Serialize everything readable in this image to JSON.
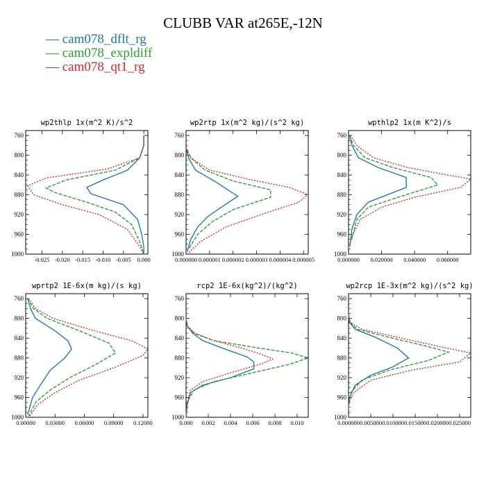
{
  "title": "CLUBB VAR at265E,-12N",
  "legend": [
    {
      "label": "— cam078_dflt_rg",
      "color": "#1f77b4"
    },
    {
      "label": "— cam078_expldiff",
      "color": "#2ca02c"
    },
    {
      "label": "— cam078_qt1_rg",
      "color": "#d62728"
    }
  ],
  "chart_data": [
    {
      "type": "line",
      "title": "wp2thlp  1x(m^2 K)/s^2",
      "xlim": [
        -0.029,
        0.001
      ],
      "ylim": [
        1000,
        750
      ],
      "yticks": [
        760,
        800,
        840,
        880,
        920,
        960,
        1000
      ],
      "xticks": [
        -0.025,
        -0.02,
        -0.015,
        -0.01,
        -0.005,
        0.0
      ],
      "xticklabels": [
        "-0.025",
        "-0.020",
        "-0.015",
        "-0.010",
        "-0.005",
        "0.000"
      ],
      "series": [
        {
          "style": "solid",
          "color": "#1f77b4",
          "x": [
            0,
            0,
            -0.001,
            -0.004,
            -0.01,
            -0.014,
            -0.013,
            -0.005,
            -0.0015,
            -0.0005,
            0,
            0
          ],
          "y": [
            760,
            780,
            805,
            830,
            850,
            865,
            878,
            900,
            930,
            960,
            985,
            1000
          ]
        },
        {
          "style": "dashed",
          "color": "#2ca02c",
          "x": [
            0,
            0,
            -0.001,
            -0.007,
            -0.019,
            -0.024,
            -0.022,
            -0.014,
            -0.007,
            -0.003,
            -0.001,
            0
          ],
          "y": [
            760,
            780,
            805,
            830,
            850,
            866,
            875,
            895,
            915,
            940,
            975,
            1000
          ]
        },
        {
          "style": "dotted",
          "color": "#d62728",
          "x": [
            0,
            0,
            -0.001,
            -0.009,
            -0.024,
            -0.0285,
            -0.027,
            -0.02,
            -0.011,
            -0.004,
            -0.001,
            0
          ],
          "y": [
            760,
            780,
            805,
            828,
            846,
            862,
            880,
            900,
            920,
            950,
            985,
            1000
          ]
        }
      ]
    },
    {
      "type": "line",
      "title": "wp2rtp  1x(m^2 kg)/(s^2 kg)",
      "xlim": [
        0,
        5.2e-06
      ],
      "ylim": [
        1000,
        750
      ],
      "yticks": [
        760,
        800,
        840,
        880,
        920,
        960,
        1000
      ],
      "xticks": [
        0,
        1e-06,
        2e-06,
        3e-06,
        4e-06,
        5e-06
      ],
      "xticklabels": [
        "0.000000",
        "0.000001",
        "0.000002",
        "0.000003",
        "0.000004",
        "0.000005"
      ],
      "series": [
        {
          "style": "solid",
          "color": "#1f77b4",
          "x": [
            0,
            0,
            1e-07,
            4e-07,
            1.3e-06,
            2.2e-06,
            1.5e-06,
            9e-07,
            5e-07,
            2e-07,
            5e-08
          ],
          "y": [
            760,
            785,
            805,
            830,
            855,
            883,
            905,
            925,
            945,
            970,
            995
          ]
        },
        {
          "style": "dashed",
          "color": "#2ca02c",
          "x": [
            0,
            0,
            2e-07,
            8e-07,
            2e-06,
            3.6e-06,
            3.6e-06,
            2e-06,
            1.1e-06,
            5e-07,
            1e-07
          ],
          "y": [
            760,
            785,
            805,
            830,
            852,
            870,
            885,
            910,
            935,
            960,
            990
          ]
        },
        {
          "style": "dotted",
          "color": "#d62728",
          "x": [
            0,
            0,
            2e-07,
            1e-06,
            2.8e-06,
            4.4e-06,
            5.2e-06,
            4.8e-06,
            3.5e-06,
            1.7e-06,
            6e-07,
            1e-07
          ],
          "y": [
            760,
            785,
            805,
            830,
            850,
            865,
            880,
            895,
            915,
            945,
            975,
            998
          ]
        }
      ]
    },
    {
      "type": "line",
      "title": "wpthlp2  1x(m K^2)/s",
      "xlim": [
        0,
        0.074
      ],
      "ylim": [
        1000,
        750
      ],
      "yticks": [
        760,
        800,
        840,
        880,
        920,
        960,
        1000
      ],
      "xticks": [
        0,
        0.02,
        0.04,
        0.06
      ],
      "xticklabels": [
        "0.000000",
        "0.020000",
        "0.040000",
        "0.060000"
      ],
      "series": [
        {
          "style": "solid",
          "color": "#1f77b4",
          "x": [
            0.0005,
            0.002,
            0.006,
            0.018,
            0.035,
            0.035,
            0.012,
            0.005,
            0.002,
            0.0008
          ],
          "y": [
            760,
            780,
            805,
            825,
            845,
            865,
            895,
            920,
            950,
            985
          ]
        },
        {
          "style": "dashed",
          "color": "#2ca02c",
          "x": [
            0.0005,
            0.003,
            0.01,
            0.027,
            0.05,
            0.054,
            0.03,
            0.012,
            0.005,
            0.0015
          ],
          "y": [
            760,
            780,
            805,
            825,
            845,
            860,
            885,
            905,
            930,
            975
          ]
        },
        {
          "style": "dotted",
          "color": "#d62728",
          "x": [
            0.001,
            0.005,
            0.015,
            0.036,
            0.06,
            0.074,
            0.068,
            0.04,
            0.02,
            0.007,
            0.002
          ],
          "y": [
            760,
            780,
            805,
            825,
            840,
            848,
            865,
            885,
            905,
            930,
            965
          ]
        }
      ]
    },
    {
      "type": "line",
      "title": "wprtp2  1E-6x(m kg)/(s kg)",
      "xlim": [
        0,
        0.125
      ],
      "ylim": [
        1000,
        750
      ],
      "yticks": [
        760,
        800,
        840,
        880,
        920,
        960,
        1000
      ],
      "xticks": [
        0,
        0.03,
        0.06,
        0.09,
        0.12
      ],
      "xticklabels": [
        "0.00000",
        "0.03000",
        "0.06000",
        "0.09000",
        "0.12000"
      ],
      "series": [
        {
          "style": "solid",
          "color": "#1f77b4",
          "x": [
            0.002,
            0.005,
            0.01,
            0.03,
            0.043,
            0.047,
            0.04,
            0.025,
            0.015,
            0.007,
            0.002
          ],
          "y": [
            760,
            780,
            800,
            825,
            845,
            862,
            880,
            905,
            935,
            960,
            995
          ]
        },
        {
          "style": "dashed",
          "color": "#2ca02c",
          "x": [
            0.002,
            0.008,
            0.022,
            0.055,
            0.085,
            0.092,
            0.07,
            0.045,
            0.025,
            0.01,
            0.003
          ],
          "y": [
            760,
            780,
            800,
            825,
            850,
            870,
            895,
            920,
            945,
            970,
            998
          ]
        },
        {
          "style": "dotted",
          "color": "#d62728",
          "x": [
            0.003,
            0.01,
            0.028,
            0.07,
            0.108,
            0.125,
            0.12,
            0.09,
            0.055,
            0.03,
            0.012,
            0.004
          ],
          "y": [
            760,
            780,
            800,
            825,
            845,
            862,
            875,
            900,
            925,
            950,
            975,
            998
          ]
        }
      ]
    },
    {
      "type": "line",
      "title": "rcp2  1E-6x(kg^2)/(kg^2)",
      "xlim": [
        0,
        0.011
      ],
      "ylim": [
        1000,
        750
      ],
      "yticks": [
        760,
        800,
        840,
        880,
        920,
        960,
        1000
      ],
      "xticks": [
        0,
        0.002,
        0.004,
        0.006,
        0.008,
        0.01
      ],
      "xticklabels": [
        "0.000",
        "0.002",
        "0.004",
        "0.006",
        "0.008",
        "0.010"
      ],
      "series": [
        {
          "style": "solid",
          "color": "#1f77b4",
          "x": [
            0,
            0,
            0.0001,
            0.0006,
            0.0015,
            0.0035,
            0.0055,
            0.0061,
            0.0061,
            0.004,
            0.0015,
            0.0004,
            0.0001,
            0
          ],
          "y": [
            760,
            800,
            815,
            830,
            845,
            862,
            878,
            888,
            902,
            920,
            935,
            950,
            975,
            1000
          ]
        },
        {
          "style": "dashed",
          "color": "#2ca02c",
          "x": [
            0,
            0,
            0.0001,
            0.0007,
            0.0025,
            0.0065,
            0.0095,
            0.011,
            0.0093,
            0.006,
            0.0025,
            0.0007,
            0.0001,
            0
          ],
          "y": [
            760,
            800,
            815,
            830,
            845,
            860,
            870,
            880,
            893,
            910,
            928,
            945,
            970,
            1000
          ]
        },
        {
          "style": "dotted",
          "color": "#d62728",
          "x": [
            0,
            0,
            0.0001,
            0.0008,
            0.0025,
            0.005,
            0.0067,
            0.0078,
            0.0068,
            0.004,
            0.0015,
            0.0004,
            0.0001,
            0
          ],
          "y": [
            760,
            800,
            815,
            830,
            845,
            860,
            872,
            882,
            892,
            910,
            928,
            945,
            970,
            1000
          ]
        }
      ]
    },
    {
      "type": "line",
      "title": "wp2rcp  1E-3x(m^2 kg)/(s^2 kg)",
      "xlim": [
        0,
        0.0275
      ],
      "ylim": [
        1000,
        750
      ],
      "yticks": [
        760,
        800,
        840,
        880,
        920,
        960,
        1000
      ],
      "xticks": [
        0,
        0.005,
        0.01,
        0.015,
        0.02,
        0.025
      ],
      "xticklabels": [
        "0.000000",
        "0.005000",
        "0.010000",
        "0.015000",
        "0.020000",
        "0.025000"
      ],
      "series": [
        {
          "style": "solid",
          "color": "#1f77b4",
          "x": [
            0,
            0,
            0.0002,
            0.0015,
            0.006,
            0.011,
            0.0135,
            0.01,
            0.005,
            0.0015,
            0.0002,
            0
          ],
          "y": [
            760,
            790,
            808,
            822,
            838,
            860,
            880,
            898,
            915,
            935,
            960,
            985
          ]
        },
        {
          "style": "dashed",
          "color": "#2ca02c",
          "x": [
            0,
            0,
            0.0003,
            0.002,
            0.009,
            0.017,
            0.0225,
            0.018,
            0.009,
            0.003,
            0.0005,
            0
          ],
          "y": [
            760,
            790,
            808,
            822,
            838,
            855,
            868,
            885,
            905,
            925,
            950,
            980
          ]
        },
        {
          "style": "dotted",
          "color": "#d62728",
          "x": [
            0,
            0,
            0.0004,
            0.003,
            0.011,
            0.021,
            0.0275,
            0.025,
            0.014,
            0.005,
            0.0012,
            0
          ],
          "y": [
            760,
            790,
            808,
            822,
            838,
            858,
            870,
            888,
            905,
            925,
            950,
            970
          ]
        }
      ]
    }
  ]
}
